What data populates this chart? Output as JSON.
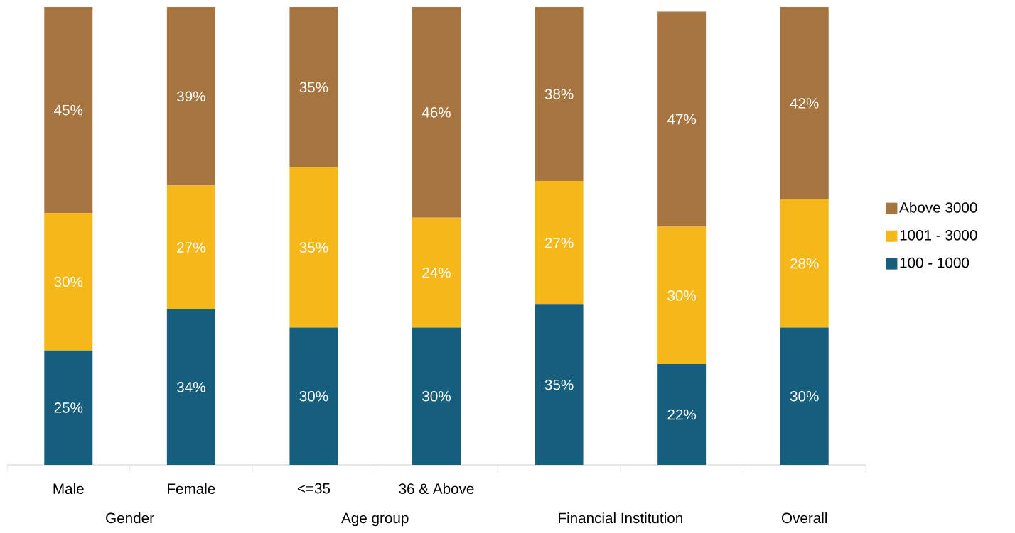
{
  "chart_data": {
    "type": "bar",
    "stacked": true,
    "categories": [
      "Male",
      "Female",
      "<=35",
      "36 & Above",
      null,
      null,
      null
    ],
    "series": [
      {
        "name": "100 - 1000",
        "color": "#155e7d",
        "values": [
          25,
          34,
          30,
          30,
          35,
          22,
          30
        ],
        "value_labels": [
          "25%",
          "34%",
          "30%",
          "30%",
          "35%",
          "22%",
          "30%"
        ]
      },
      {
        "name": "1001 - 3000",
        "color": "#f6b818",
        "values": [
          30,
          27,
          35,
          24,
          27,
          30,
          28
        ],
        "value_labels": [
          "30%",
          "27%",
          "35%",
          "24%",
          "27%",
          "30%",
          "28%"
        ]
      },
      {
        "name": "Above 3000",
        "color": "#a6743e",
        "values": [
          45,
          39,
          35,
          46,
          38,
          47,
          42
        ],
        "value_labels": [
          "45%",
          "39%",
          "35%",
          "46%",
          "38%",
          "47%",
          "42%"
        ]
      }
    ],
    "annotations": [
      "Gender",
      "Age group",
      "Financial Institution",
      "Overall"
    ],
    "legend": "right"
  }
}
